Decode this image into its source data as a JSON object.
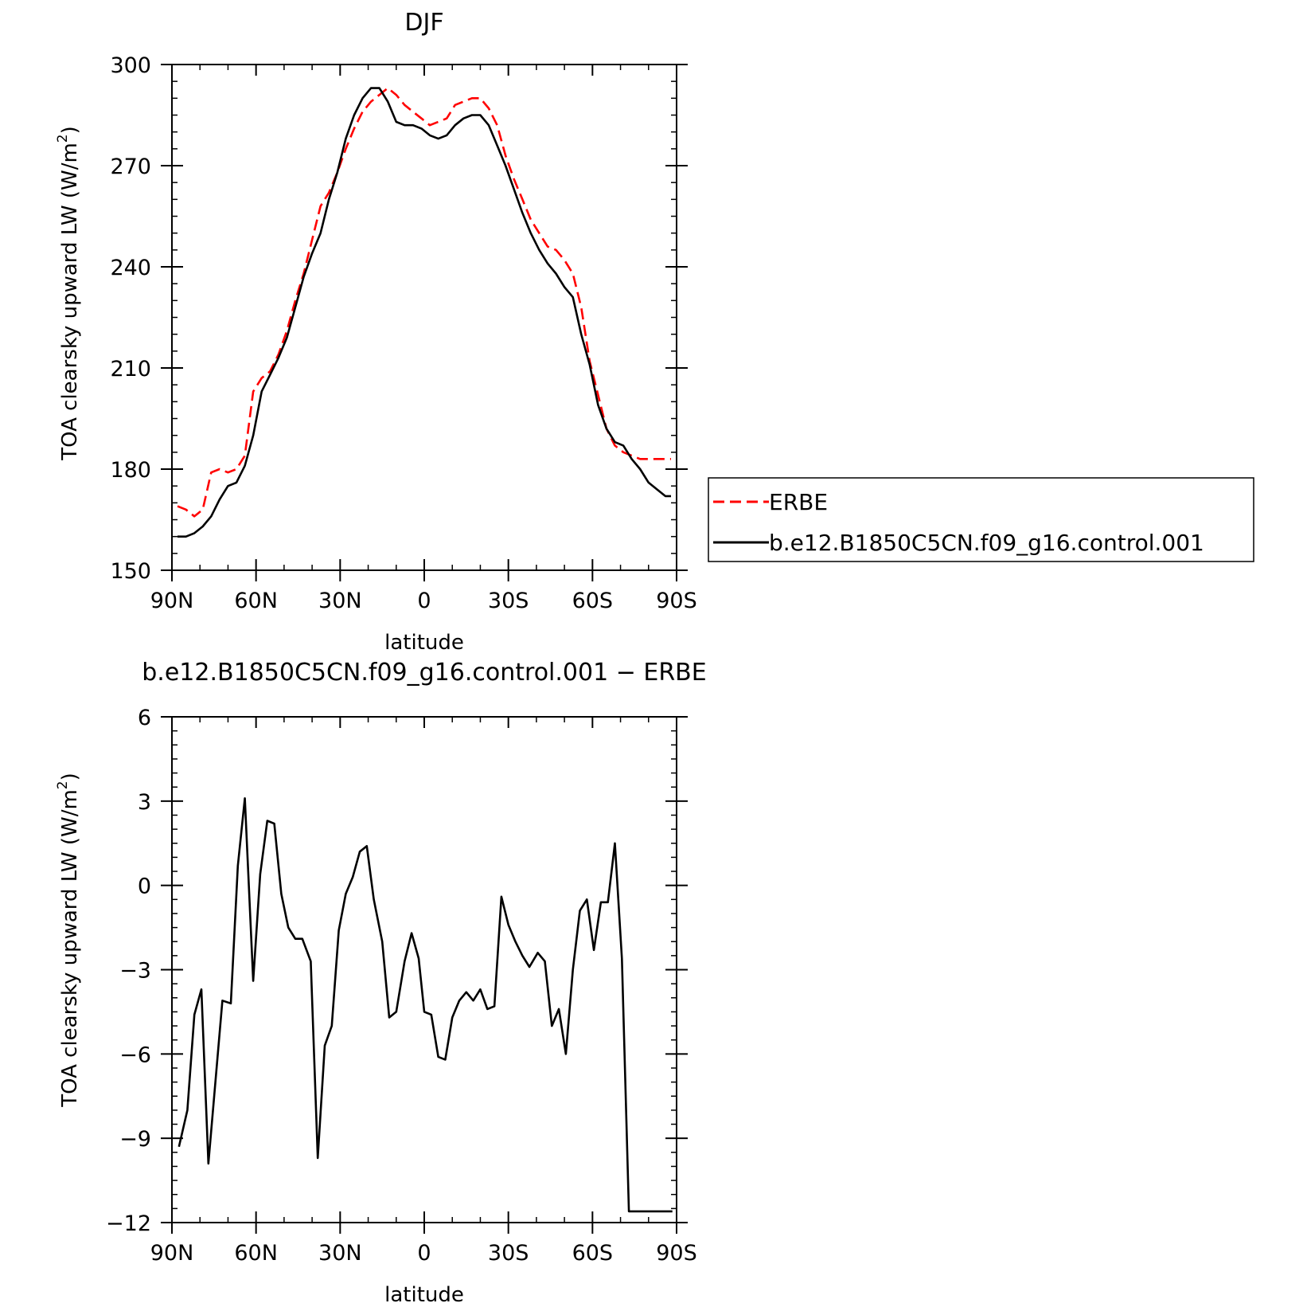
{
  "chart_data": [
    {
      "type": "line",
      "title": "DJF",
      "xlabel": "latitude",
      "ylabel": "TOA clearsky upward LW (W/m²)",
      "ylabel_main": "TOA clearsky upward LW (W/m",
      "ylabel_sup": "2",
      "ylabel_end": ")",
      "xlim": [
        90,
        -90
      ],
      "ylim": [
        150,
        300
      ],
      "x_ticks": [
        90,
        60,
        30,
        0,
        -30,
        -60,
        -90
      ],
      "x_tick_labels": [
        "90N",
        "60N",
        "30N",
        "0",
        "30S",
        "60S",
        "90S"
      ],
      "y_ticks": [
        150,
        180,
        210,
        240,
        270,
        300
      ],
      "y_tick_labels": [
        "150",
        "180",
        "210",
        "240",
        "270",
        "300"
      ],
      "legend": "right",
      "series": [
        {
          "name": "ERBE",
          "color": "#ff0000",
          "dash": true,
          "x": [
            88,
            85,
            82,
            79,
            76,
            73,
            70,
            67,
            64,
            61,
            58,
            55,
            52,
            49,
            46,
            43,
            40,
            37,
            34,
            31,
            28,
            25,
            22,
            19,
            16,
            13,
            10,
            7,
            4,
            1,
            -2,
            -5,
            -8,
            -11,
            -14,
            -17,
            -20,
            -23,
            -26,
            -29,
            -32,
            -35,
            -38,
            -41,
            -44,
            -47,
            -50,
            -53,
            -56,
            -59,
            -62,
            -65,
            -68,
            -71,
            -74,
            -77,
            -80,
            -83,
            -86,
            -88
          ],
          "y": [
            169,
            168,
            166,
            168,
            179,
            180,
            179,
            180,
            184,
            203,
            207,
            209,
            214,
            221,
            230,
            238,
            248,
            258,
            262,
            268,
            275,
            281,
            286,
            289,
            291,
            293,
            291,
            288,
            286,
            284,
            282,
            283,
            284,
            288,
            289,
            290,
            290,
            287,
            282,
            273,
            266,
            260,
            254,
            250,
            246,
            245,
            242,
            238,
            228,
            212,
            202,
            192,
            187,
            185,
            184,
            183,
            183,
            183,
            183,
            183
          ]
        },
        {
          "name": "b.e12.B1850C5CN.f09_g16.control.001",
          "color": "#000000",
          "dash": false,
          "x": [
            88,
            85,
            82,
            79,
            76,
            73,
            70,
            67,
            64,
            61,
            58,
            55,
            52,
            49,
            46,
            43,
            40,
            37,
            34,
            31,
            28,
            25,
            22,
            19,
            16,
            13,
            10,
            7,
            4,
            1,
            -2,
            -5,
            -8,
            -11,
            -14,
            -17,
            -20,
            -23,
            -26,
            -29,
            -32,
            -35,
            -38,
            -41,
            -44,
            -47,
            -50,
            -53,
            -56,
            -59,
            -62,
            -65,
            -68,
            -71,
            -74,
            -77,
            -80,
            -83,
            -86,
            -88
          ],
          "y": [
            160,
            160,
            161,
            163,
            166,
            171,
            175,
            176,
            181,
            190,
            203,
            208,
            213,
            219,
            228,
            237,
            244,
            250,
            260,
            268,
            278,
            285,
            290,
            293,
            293,
            289,
            283,
            282,
            282,
            281,
            279,
            278,
            279,
            282,
            284,
            285,
            285,
            282,
            276,
            270,
            263,
            256,
            250,
            245,
            241,
            238,
            234,
            231,
            220,
            211,
            199,
            192,
            188,
            187,
            183,
            180,
            176,
            174,
            172,
            172
          ]
        }
      ]
    },
    {
      "type": "line",
      "title": "b.e12.B1850C5CN.f09_g16.control.001 − ERBE",
      "xlabel": "latitude",
      "ylabel": "TOA clearsky upward LW (W/m²)",
      "ylabel_main": "TOA clearsky upward LW (W/m",
      "ylabel_sup": "2",
      "ylabel_end": ")",
      "xlim": [
        90,
        -90
      ],
      "ylim": [
        -12,
        6
      ],
      "x_ticks": [
        90,
        60,
        30,
        0,
        -30,
        -60,
        -90
      ],
      "x_tick_labels": [
        "90N",
        "60N",
        "30N",
        "0",
        "30S",
        "60S",
        "90S"
      ],
      "y_ticks": [
        -12,
        -9,
        -6,
        -3,
        0,
        3,
        6
      ],
      "y_tick_labels": [
        "−12",
        "−9",
        "−6",
        "−3",
        "0",
        "3",
        "6"
      ],
      "series": [
        {
          "color": "#000000",
          "dash": false,
          "x": [
            87.5,
            84.5,
            82,
            79.5,
            77,
            74.5,
            72,
            69,
            66.5,
            64,
            61,
            58.5,
            56,
            53.5,
            51,
            48.5,
            46,
            43.5,
            40.5,
            38,
            35.5,
            33,
            30.5,
            28,
            25.5,
            23,
            20.5,
            18,
            15,
            12.5,
            10,
            7,
            4.5,
            2,
            0,
            -2.5,
            -5,
            -7.5,
            -10,
            -12.5,
            -15,
            -17.5,
            -20,
            -22.5,
            -25,
            -27.5,
            -30,
            -32.5,
            -35,
            -37.5,
            -40.5,
            -43,
            -45.5,
            -48,
            -50.5,
            -53,
            -55.5,
            -58,
            -60.5,
            -63,
            -65.5,
            -68,
            -70.5,
            -73,
            -75.5,
            -78,
            -80.5,
            -83,
            -85.5,
            -88.5
          ],
          "y": [
            -9.3,
            -8.0,
            -4.6,
            -3.7,
            -9.9,
            -7.0,
            -4.1,
            -4.2,
            0.7,
            3.1,
            -3.4,
            0.4,
            2.3,
            2.2,
            -0.3,
            -1.5,
            -1.9,
            -1.9,
            -2.7,
            -9.7,
            -5.7,
            -5.0,
            -1.6,
            -0.3,
            0.3,
            1.2,
            1.4,
            -0.5,
            -2.0,
            -4.7,
            -4.5,
            -2.7,
            -1.7,
            -2.6,
            -4.5,
            -4.6,
            -6.1,
            -6.2,
            -4.7,
            -4.1,
            -3.8,
            -4.1,
            -3.7,
            -4.4,
            -4.3,
            -0.4,
            -1.4,
            -2.0,
            -2.5,
            -2.9,
            -2.4,
            -2.7,
            -5.0,
            -4.4,
            -6.0,
            -3.0,
            -0.9,
            -0.5,
            -2.3,
            -0.6,
            -0.6,
            1.5,
            -2.6,
            -11.6,
            -11.6,
            -11.6,
            -11.6,
            -11.6,
            -11.6,
            -11.6
          ]
        }
      ]
    }
  ]
}
